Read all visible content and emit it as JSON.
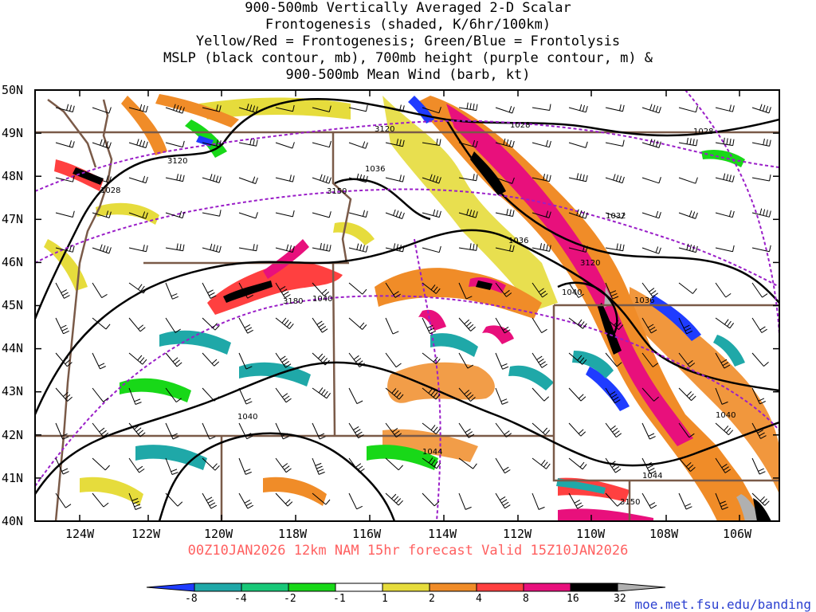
{
  "title": {
    "line1": "900-500mb Vertically Averaged 2-D Scalar",
    "line2": "Frontogenesis (shaded, K/6hr/100km)",
    "line3": "Yellow/Red = Frontogenesis;  Green/Blue = Frontolysis",
    "line4": "MSLP (black contour, mb), 700mb height (purple contour, m) &",
    "line5": "900-500mb Mean Wind (barb, kt)"
  },
  "lat_labels": [
    "50N",
    "49N",
    "48N",
    "47N",
    "46N",
    "45N",
    "44N",
    "43N",
    "42N",
    "41N",
    "40N"
  ],
  "lon_labels": [
    "124W",
    "122W",
    "120W",
    "118W",
    "116W",
    "114W",
    "112W",
    "110W",
    "108W",
    "106W"
  ],
  "contour_labels": {
    "mslp": [
      "1028",
      "1028",
      "1036",
      "1036",
      "1032",
      "1040",
      "1040",
      "1036",
      "1040",
      "1040",
      "1044",
      "1044",
      "1028"
    ],
    "height": [
      "3120",
      "3120",
      "3150",
      "3180",
      "3120",
      "3150"
    ]
  },
  "forecast_line": "00Z10JAN2026 12km NAM 15hr forecast Valid 15Z10JAN2026",
  "colorbar": {
    "labels": [
      "-8",
      "-4",
      "-2",
      "-1",
      "1",
      "2",
      "4",
      "8",
      "16",
      "32"
    ],
    "colors": [
      "#1f3cff",
      "#1fa8a8",
      "#18c878",
      "#18d818",
      "#ffffff",
      "#e6dc3c",
      "#f08c28",
      "#ff4040",
      "#e8107c",
      "#000000",
      "#b0b0b0"
    ]
  },
  "credit": "moe.met.fsu.edu/banding",
  "colors": {
    "mslp_contour": "#000000",
    "height_contour": "#9a1ec8",
    "borders": "#7a5a48",
    "forecast_text": "#ff6060",
    "credit_text": "#2a3fd0"
  }
}
